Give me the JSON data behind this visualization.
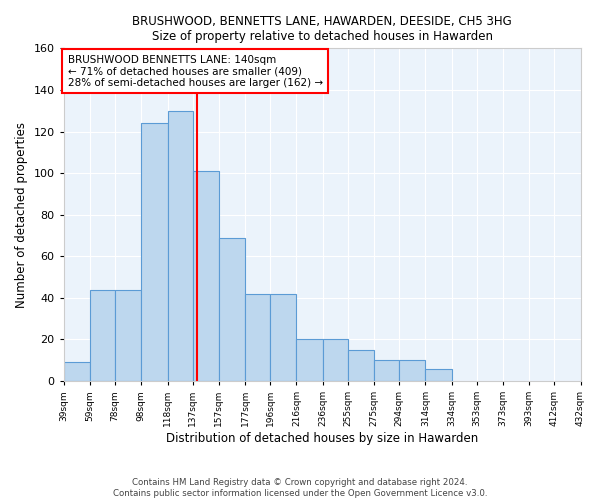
{
  "title": "BRUSHWOOD, BENNETTS LANE, HAWARDEN, DEESIDE, CH5 3HG",
  "subtitle": "Size of property relative to detached houses in Hawarden",
  "xlabel": "Distribution of detached houses by size in Hawarden",
  "ylabel": "Number of detached properties",
  "bin_edges": [
    39,
    59,
    78,
    98,
    118,
    137,
    157,
    177,
    196,
    216,
    236,
    255,
    275,
    294,
    314,
    334,
    353,
    373,
    393,
    412,
    432
  ],
  "bar_heights": [
    9,
    44,
    44,
    124,
    130,
    101,
    69,
    42,
    42,
    20,
    20,
    15,
    10,
    10,
    6,
    0,
    0,
    0,
    0,
    0
  ],
  "tick_labels": [
    "39sqm",
    "59sqm",
    "78sqm",
    "98sqm",
    "118sqm",
    "137sqm",
    "157sqm",
    "177sqm",
    "196sqm",
    "216sqm",
    "236sqm",
    "255sqm",
    "275sqm",
    "294sqm",
    "314sqm",
    "334sqm",
    "353sqm",
    "373sqm",
    "393sqm",
    "412sqm",
    "432sqm"
  ],
  "bar_color": "#BDD7EE",
  "bar_edge_color": "#5B9BD5",
  "property_line_x": 140,
  "property_line_color": "red",
  "annotation_text": "BRUSHWOOD BENNETTS LANE: 140sqm\n← 71% of detached houses are smaller (409)\n28% of semi-detached houses are larger (162) →",
  "annotation_box_color": "white",
  "annotation_box_edge": "red",
  "footer_text": "Contains HM Land Registry data © Crown copyright and database right 2024.\nContains public sector information licensed under the Open Government Licence v3.0.",
  "background_color": "#EBF3FB",
  "ylim": [
    0,
    160
  ],
  "yticks": [
    0,
    20,
    40,
    60,
    80,
    100,
    120,
    140,
    160
  ]
}
